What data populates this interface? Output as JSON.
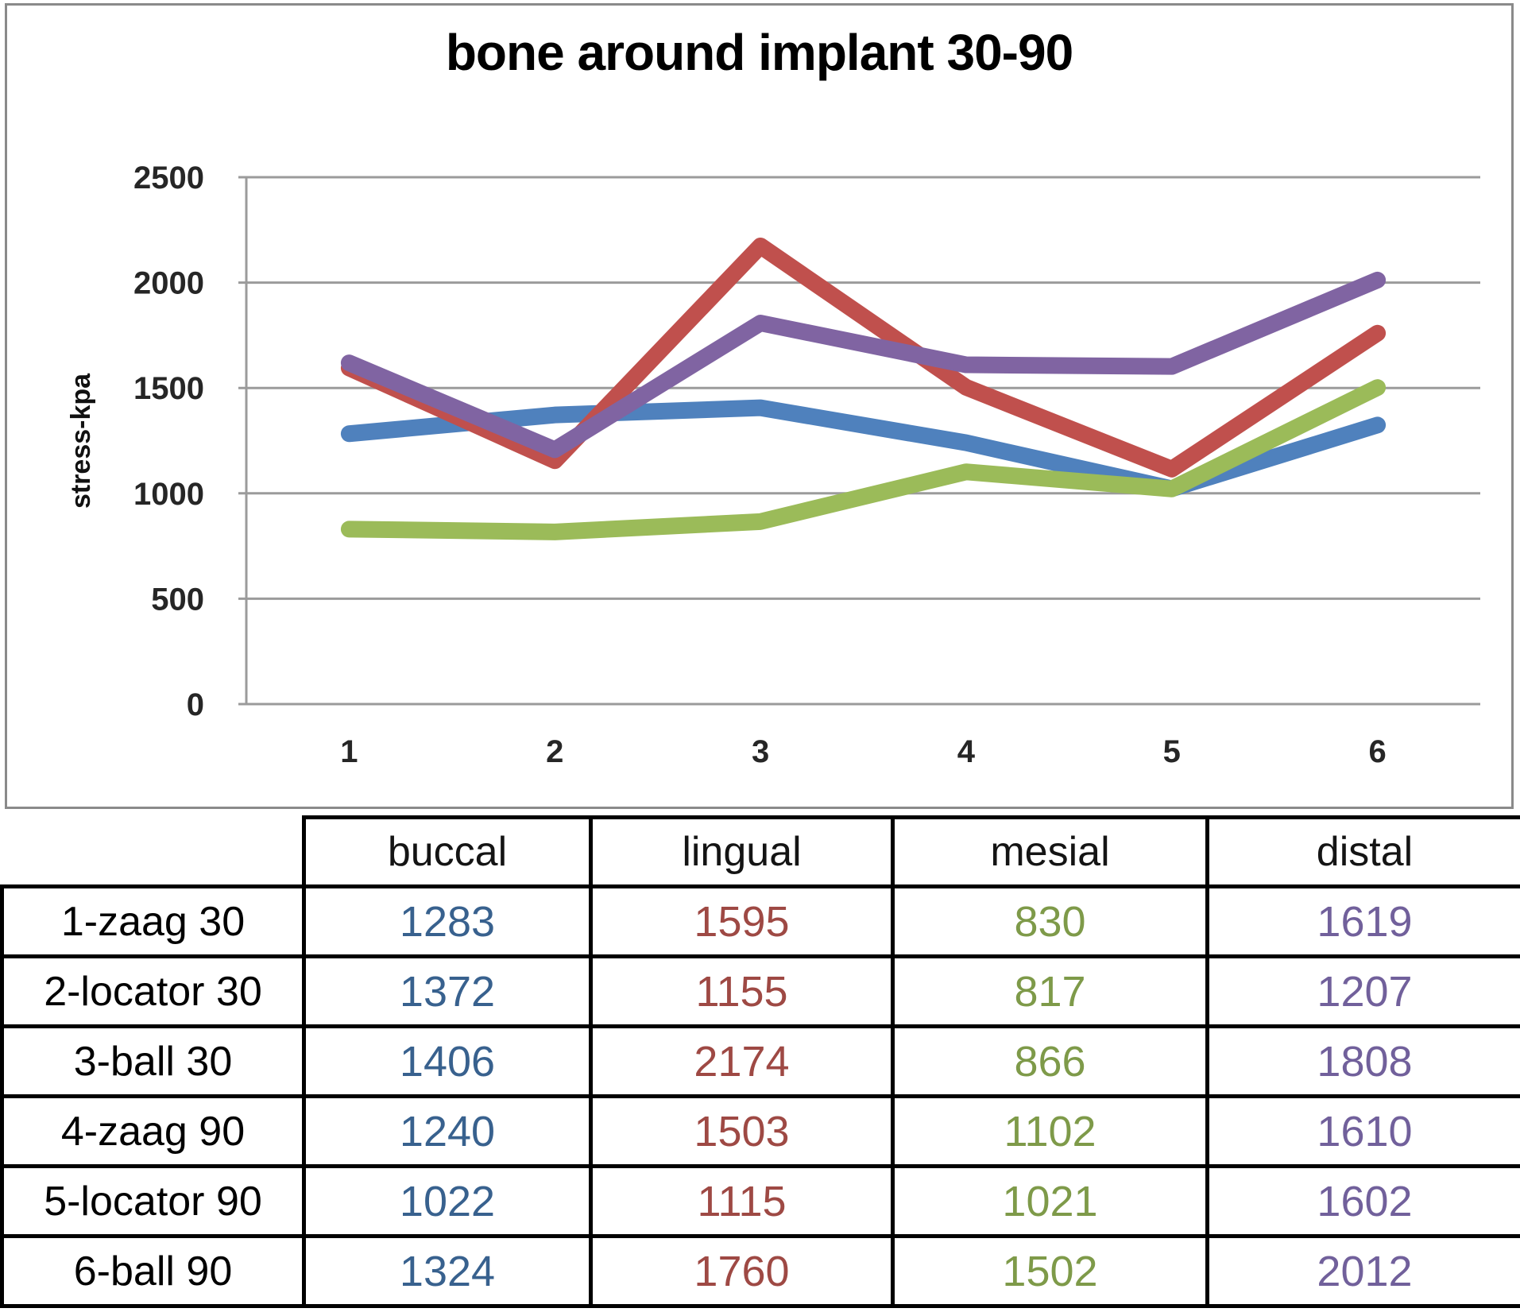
{
  "chart": {
    "title": "bone around implant 30-90",
    "y_axis_label": "stress-kpa",
    "y_ticks": [
      "2500",
      "2000",
      "1500",
      "1000",
      "500",
      "0"
    ],
    "x_tick_labels": [
      "1",
      "2",
      "3",
      "4",
      "5",
      "6"
    ]
  },
  "chart_data": {
    "type": "line",
    "title": "bone around implant 30-90",
    "xlabel": "",
    "ylabel": "stress-kpa",
    "x": [
      1,
      2,
      3,
      4,
      5,
      6
    ],
    "ylim": [
      0,
      2500
    ],
    "y_tick_step": 500,
    "grid": true,
    "legend": "none",
    "series": [
      {
        "name": "buccal",
        "color": "#4F81BD",
        "values": [
          1283,
          1372,
          1406,
          1240,
          1022,
          1324
        ]
      },
      {
        "name": "lingual",
        "color": "#C0504D",
        "values": [
          1595,
          1155,
          2174,
          1503,
          1115,
          1760
        ]
      },
      {
        "name": "mesial",
        "color": "#9BBB59",
        "values": [
          830,
          817,
          866,
          1102,
          1021,
          1502
        ]
      },
      {
        "name": "distal",
        "color": "#8064A2",
        "values": [
          1619,
          1207,
          1808,
          1610,
          1602,
          2012
        ]
      }
    ]
  },
  "table": {
    "columns": [
      "buccal",
      "lingual",
      "mesial",
      "distal"
    ],
    "value_colors": [
      "#38618E",
      "#9E4944",
      "#7E9A49",
      "#71609B"
    ],
    "rows": [
      {
        "label": "1-zaag 30",
        "values": [
          "1283",
          "1595",
          "830",
          "1619"
        ]
      },
      {
        "label": "2-locator 30",
        "values": [
          "1372",
          "1155",
          "817",
          "1207"
        ]
      },
      {
        "label": "3-ball 30",
        "values": [
          "1406",
          "2174",
          "866",
          "1808"
        ]
      },
      {
        "label": "4-zaag 90",
        "values": [
          "1240",
          "1503",
          "1102",
          "1610"
        ]
      },
      {
        "label": "5-locator 90",
        "values": [
          "1022",
          "1115",
          "1021",
          "1602"
        ]
      },
      {
        "label": "6-ball 90",
        "values": [
          "1324",
          "1760",
          "1502",
          "2012"
        ]
      }
    ]
  },
  "colors": {
    "grid_line": "#9B9B9B",
    "axis_line": "#9B9B9B",
    "chart_border": "#8A8A8A",
    "table_border": "#000000",
    "tick_label": "#262626"
  }
}
